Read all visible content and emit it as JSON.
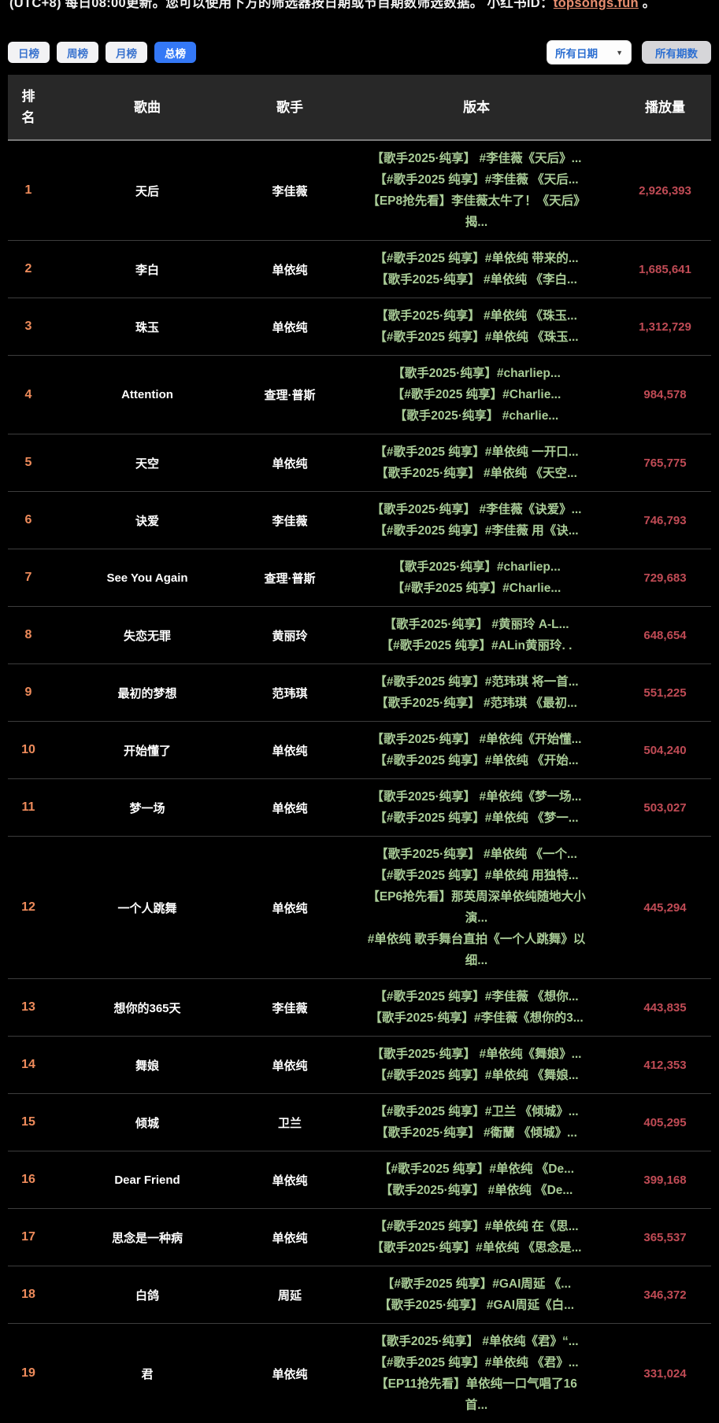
{
  "page_note": {
    "text": "(UTC+8) 每日08:00更新。您可以使用下方的筛选器按日期或节目期数筛选数据。 小红书ID：",
    "link": "topsongs.fun",
    "suffix": " 。"
  },
  "filters": {
    "tabs": [
      {
        "id": "daily",
        "label": "日榜",
        "active": false
      },
      {
        "id": "weekly",
        "label": "周榜",
        "active": false
      },
      {
        "id": "monthly",
        "label": "月榜",
        "active": false
      },
      {
        "id": "total",
        "label": "总榜",
        "active": true
      }
    ],
    "date_filter": {
      "value": "所有日期"
    },
    "episode_filter": "所有期数"
  },
  "colors": {
    "accent_blue": "#3478f6",
    "rank_orange": "#ee8b5b",
    "version_green": "#a9cc97",
    "plays_red": "#c04b55",
    "link_salmon": "#e98f70"
  },
  "table": {
    "headers": [
      "排名",
      "歌曲",
      "歌手",
      "版本",
      "播放量"
    ],
    "rows": [
      {
        "rank": "1",
        "song": "天后",
        "singer": "李佳薇",
        "versions": [
          "【歌手2025·纯享】 #李佳薇《天后》...",
          "【#歌手2025 纯享】#李佳薇 《天后...",
          "【EP8抢先看】李佳薇太牛了！《天后》",
          "揭..."
        ],
        "plays": "2,926,393"
      },
      {
        "rank": "2",
        "song": "李白",
        "singer": "单依纯",
        "versions": [
          "【#歌手2025 纯享】#单依纯 带来的...",
          "【歌手2025·纯享】 #单依纯 《李白..."
        ],
        "plays": "1,685,641"
      },
      {
        "rank": "3",
        "song": "珠玉",
        "singer": "单依纯",
        "versions": [
          "【歌手2025·纯享】 #单依纯 《珠玉...",
          "【#歌手2025 纯享】#单依纯 《珠玉..."
        ],
        "plays": "1,312,729"
      },
      {
        "rank": "4",
        "song": "Attention",
        "singer": "查理·普斯",
        "versions": [
          "【歌手2025·纯享】#charliep...",
          "【#歌手2025 纯享】#Charlie...",
          "【歌手2025·纯享】 #charlie..."
        ],
        "plays": "984,578"
      },
      {
        "rank": "5",
        "song": "天空",
        "singer": "单依纯",
        "versions": [
          "【#歌手2025 纯享】#单依纯 一开口...",
          "【歌手2025·纯享】 #单依纯 《天空..."
        ],
        "plays": "765,775"
      },
      {
        "rank": "6",
        "song": "诀爱",
        "singer": "李佳薇",
        "versions": [
          "【歌手2025·纯享】 #李佳薇《诀爱》...",
          "【#歌手2025 纯享】#李佳薇 用《诀..."
        ],
        "plays": "746,793"
      },
      {
        "rank": "7",
        "song": "See You Again",
        "singer": "查理·普斯",
        "versions": [
          "【歌手2025·纯享】#charliep...",
          "【#歌手2025 纯享】#Charlie..."
        ],
        "plays": "729,683"
      },
      {
        "rank": "8",
        "song": "失恋无罪",
        "singer": "黄丽玲",
        "versions": [
          "【歌手2025·纯享】 #黄丽玲 A-L...",
          "【#歌手2025 纯享】#ALin黄丽玲. ."
        ],
        "plays": "648,654"
      },
      {
        "rank": "9",
        "song": "最初的梦想",
        "singer": "范玮琪",
        "versions": [
          "【#歌手2025 纯享】#范玮琪 将一首...",
          "【歌手2025·纯享】 #范玮琪 《最初..."
        ],
        "plays": "551,225"
      },
      {
        "rank": "10",
        "song": "开始懂了",
        "singer": "单依纯",
        "versions": [
          "【歌手2025·纯享】 #单依纯《开始懂...",
          "【#歌手2025 纯享】#单依纯 《开始..."
        ],
        "plays": "504,240"
      },
      {
        "rank": "11",
        "song": "梦一场",
        "singer": "单依纯",
        "versions": [
          "【歌手2025·纯享】 #单依纯《梦一场...",
          "【#歌手2025 纯享】#单依纯 《梦一..."
        ],
        "plays": "503,027"
      },
      {
        "rank": "12",
        "song": "一个人跳舞",
        "singer": "单依纯",
        "versions": [
          "【歌手2025·纯享】 #单依纯 《一个...",
          "【#歌手2025 纯享】#单依纯 用独特...",
          "【EP6抢先看】那英周深单依纯随地大小",
          "演...",
          "#单依纯 歌手舞台直拍《一个人跳舞》以",
          "细..."
        ],
        "plays": "445,294"
      },
      {
        "rank": "13",
        "song": "想你的365天",
        "singer": "李佳薇",
        "versions": [
          "【#歌手2025 纯享】#李佳薇 《想你...",
          "【歌手2025·纯享】#李佳薇《想你的3..."
        ],
        "plays": "443,835"
      },
      {
        "rank": "14",
        "song": "舞娘",
        "singer": "单依纯",
        "versions": [
          "【歌手2025·纯享】 #单依纯《舞娘》...",
          "【#歌手2025 纯享】#单依纯 《舞娘..."
        ],
        "plays": "412,353"
      },
      {
        "rank": "15",
        "song": "倾城",
        "singer": "卫兰",
        "versions": [
          "【#歌手2025 纯享】#卫兰 《倾城》...",
          "【歌手2025·纯享】 #衛蘭 《倾城》..."
        ],
        "plays": "405,295"
      },
      {
        "rank": "16",
        "song": "Dear Friend",
        "singer": "单依纯",
        "versions": [
          "【#歌手2025 纯享】#单依纯 《De...",
          "【歌手2025·纯享】 #单依纯 《De..."
        ],
        "plays": "399,168"
      },
      {
        "rank": "17",
        "song": "思念是一种病",
        "singer": "单依纯",
        "versions": [
          "【#歌手2025 纯享】#单依纯 在《思...",
          "【歌手2025·纯享】#单依纯 《思念是..."
        ],
        "plays": "365,537"
      },
      {
        "rank": "18",
        "song": "白鸽",
        "singer": "周延",
        "versions": [
          "【#歌手2025 纯享】#GAI周延 《...",
          "【歌手2025·纯享】 #GAI周延《白..."
        ],
        "plays": "346,372"
      },
      {
        "rank": "19",
        "song": "君",
        "singer": "单依纯",
        "versions": [
          "【歌手2025·纯享】 #单依纯《君》“...",
          "【#歌手2025 纯享】#单依纯 《君》...",
          "【EP11抢先看】单依纯一口气唱了16",
          "首..."
        ],
        "plays": "331,024"
      }
    ]
  }
}
